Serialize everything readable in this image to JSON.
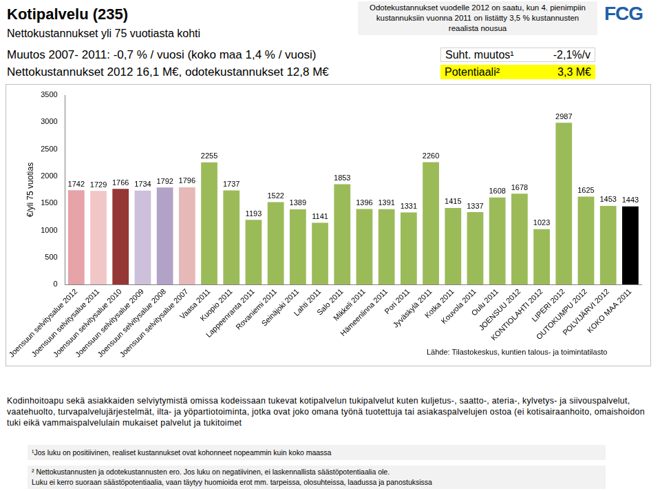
{
  "header": {
    "title": "Kotipalvelu (235)",
    "subtitle": "Nettokustannukset yli 75 vuotiasta kohti",
    "note": "Odotekustannukset vuodelle 2012 on saatu, kun 4. pienimpiin kustannuksiin vuonna 2011 on listätty 3,5 % kustannusten reaalista nousua",
    "logo": "FCG",
    "change": "Muutos 2007- 2011: -0,7 % / vuosi (koko maa 1,4 % / vuosi)",
    "costs": "Nettokustannukset 2012 16,1 M€, odotekustannukset 12,8 M€",
    "relative_change_label": "Suht. muutos¹",
    "relative_change_value": "-2,1%/v",
    "potential_label": "Potentiaali²",
    "potential_value": "3,3 M€"
  },
  "chart_data": {
    "type": "bar",
    "ylabel": "€/yli 75 vuotias",
    "categories": [
      "Joensuun selvitysalue 2012",
      "Joensuun selvitysalue 2011",
      "Joensuun selvitysalue 2010",
      "Joensuun selvitysalue 2009",
      "Joensuun selvitysalue 2008",
      "Joensuun selvitysalue 2007",
      "Vaasa 2011",
      "Kuopio 2011",
      "Lappeenranta 2011",
      "Rovaniemi 2011",
      "Seinäjoki 2011",
      "Lahti 2011",
      "Salo 2011",
      "Mikkeli 2011",
      "Hämeenlinna 2011",
      "Pori 2011",
      "Jyväskylä 2011",
      "Kotka 2011",
      "Kouvola 2011",
      "Oulu 2011",
      "JOENSUU 2012",
      "KONTIOLAHTI 2012",
      "LIPERI 2012",
      "OUTOKUMPU 2012",
      "POLVIJÄRVI 2012",
      "KOKO MAA 2011"
    ],
    "values": [
      1742,
      1729,
      1766,
      1734,
      1792,
      1796,
      2255,
      1737,
      1193,
      1522,
      1389,
      1141,
      1853,
      1396,
      1391,
      1331,
      2260,
      1415,
      1337,
      1608,
      1678,
      1023,
      2987,
      1625,
      1453,
      1443
    ],
    "colors": [
      "#e6a3a8",
      "#f0c6c6",
      "#953735",
      "#ccc0da",
      "#b3a2c7",
      "#e6b9b8",
      "#9bbb59",
      "#9bbb59",
      "#9bbb59",
      "#9bbb59",
      "#9bbb59",
      "#9bbb59",
      "#9bbb59",
      "#9bbb59",
      "#9bbb59",
      "#9bbb59",
      "#9bbb59",
      "#9bbb59",
      "#9bbb59",
      "#9bbb59",
      "#9bbb59",
      "#9bbb59",
      "#9bbb59",
      "#9bbb59",
      "#9bbb59",
      "#000000"
    ],
    "ylim": [
      0,
      3500
    ],
    "yticks": [
      0,
      500,
      1000,
      1500,
      2000,
      2500,
      3000,
      3500
    ],
    "grid": false,
    "data_labels": true
  },
  "source": "Lähde: Tilastokeskus, kuntien talous- ja toimintatilasto",
  "description": "Kodinhoitoapu sekä asiakkaiden selviytymistä omissa kodeissaan tukevat kotipalvelun tukipalvelut kuten kuljetus-, saatto-, ateria-, kylvetys- ja siivouspalvelut, vaatehuolto, turvapalvelujärjestelmät, ilta- ja yöpartiotoiminta, jotka ovat joko omana työnä tuotettuja tai asiakaspalvelujen ostoa (ei kotisairaanhoito, omaishoidon tuki eikä vammaispalvelulain mukaiset palvelut ja tukitoimet",
  "footnotes": [
    "¹Jos luku on positiivinen, realiset kustannukset ovat kohonneet nopeammin kuin koko maassa",
    "² Nettokustannusten ja odotekustannusten ero. Jos luku on negatiivinen, ei laskennallista säästöpotentiaalia ole.",
    "Luku ei kerro suoraan säästöpotentiaalia, vaan täytyy huomioida erot mm. tarpeissa, olosuhteissa, laadussa ja panostuksissa"
  ]
}
